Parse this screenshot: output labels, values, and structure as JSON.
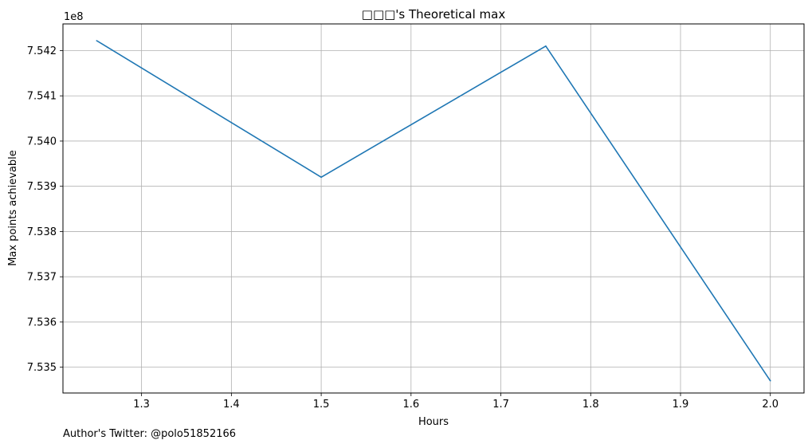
{
  "chart_data": {
    "type": "line",
    "title": "□□□'s Theoretical max",
    "xlabel": "Hours",
    "ylabel": "Max points achievable",
    "y_offset_label": "1e8",
    "x": [
      1.25,
      1.5,
      1.75,
      2.0
    ],
    "series": [
      {
        "values": [
          754222000,
          753920000,
          754210000,
          753470000
        ],
        "color": "#1f77b4"
      }
    ],
    "xlim": [
      1.2125,
      2.0375
    ],
    "ylim": [
      753443000,
      754259000
    ],
    "x_ticks": [
      1.3,
      1.4,
      1.5,
      1.6,
      1.7,
      1.8,
      1.9,
      2.0
    ],
    "x_tick_labels": [
      "1.3",
      "1.4",
      "1.5",
      "1.6",
      "1.7",
      "1.8",
      "1.9",
      "2.0"
    ],
    "y_ticks": [
      753500000,
      753600000,
      753700000,
      753800000,
      753900000,
      754000000,
      754100000,
      754200000
    ],
    "y_tick_labels": [
      "7.535",
      "7.536",
      "7.537",
      "7.538",
      "7.539",
      "7.540",
      "7.541",
      "7.542"
    ],
    "grid": true,
    "legend": "none"
  },
  "footer": {
    "text": "Author's Twitter: @polo51852166"
  }
}
